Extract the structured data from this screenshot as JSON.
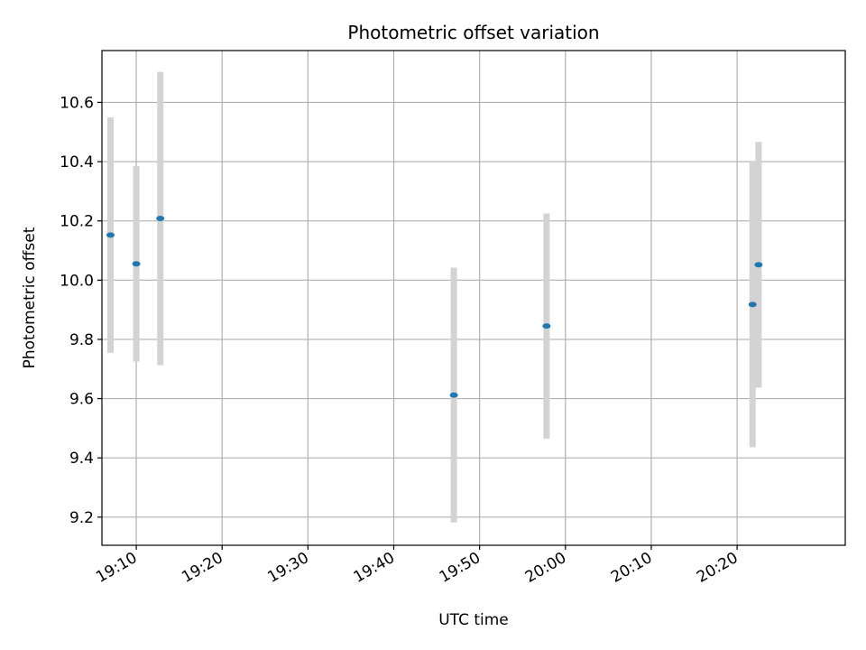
{
  "chart_data": {
    "type": "scatter",
    "title": "Photometric offset variation",
    "xlabel": "UTC time",
    "ylabel": "Photometric offset",
    "x_ticks": [
      "19:10",
      "19:20",
      "19:30",
      "19:40",
      "19:50",
      "20:00",
      "20:10",
      "20:20"
    ],
    "y_ticks": [
      "9.2",
      "9.4",
      "9.6",
      "9.8",
      "10.0",
      "10.2",
      "10.4",
      "10.6"
    ],
    "xlim": [
      "19:06",
      "20:32.6"
    ],
    "ylim": [
      9.105,
      10.775
    ],
    "grid": true,
    "points": [
      {
        "x": "19:07",
        "y": 10.152,
        "err": 0.397
      },
      {
        "x": "19:10",
        "y": 10.055,
        "err": 0.33
      },
      {
        "x": "19:12.8",
        "y": 10.208,
        "err": 0.495
      },
      {
        "x": "19:47",
        "y": 9.612,
        "err": 0.43
      },
      {
        "x": "19:57.8",
        "y": 9.845,
        "err": 0.38
      },
      {
        "x": "20:21.8",
        "y": 9.918,
        "err": 0.482
      },
      {
        "x": "20:22.5",
        "y": 10.052,
        "err": 0.415
      }
    ],
    "colors": {
      "marker": "#1f77b4",
      "errorbar": "#d3d3d3",
      "grid": "#b0b0b0"
    }
  }
}
